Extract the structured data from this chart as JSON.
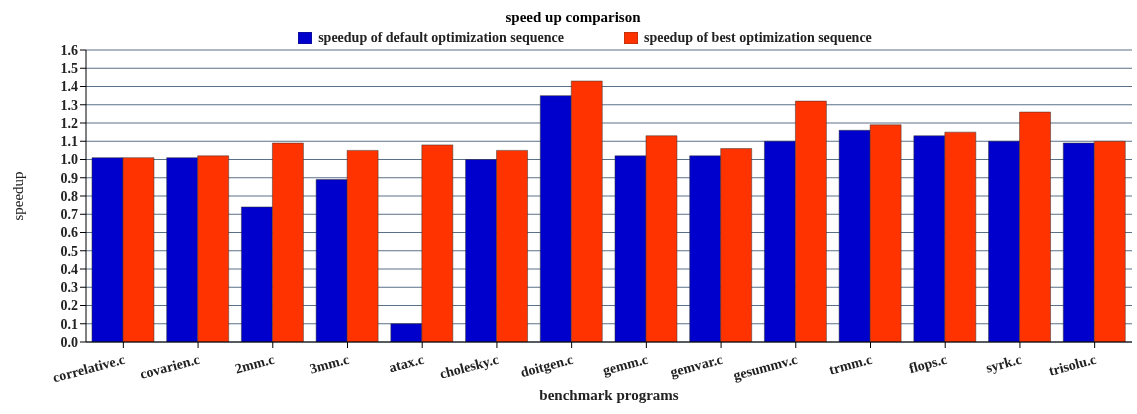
{
  "chart_data": {
    "type": "bar",
    "title": "speed up comparison",
    "xlabel": "benchmark programs",
    "ylabel": "speedup",
    "categories": [
      "correlative.c",
      "covarien.c",
      "2mm.c",
      "3mm.c",
      "atax.c",
      "cholesky.c",
      "doitgen.c",
      "gemm.c",
      "gemvar.c",
      "gesummv.c",
      "trmm.c",
      "flops.c",
      "syrk.c",
      "trisolu.c"
    ],
    "series": [
      {
        "name": "speedup of default optimization sequence",
        "color": "#0000cc",
        "values": [
          1.01,
          1.01,
          0.74,
          0.89,
          0.1,
          1.0,
          1.35,
          1.02,
          1.02,
          1.1,
          1.16,
          1.13,
          1.1,
          1.09
        ]
      },
      {
        "name": "speedup of best optimization sequence",
        "color": "#ff3300",
        "values": [
          1.01,
          1.02,
          1.09,
          1.05,
          1.08,
          1.05,
          1.43,
          1.13,
          1.06,
          1.32,
          1.19,
          1.15,
          1.26,
          1.1
        ]
      }
    ],
    "ylim": [
      0,
      1.6
    ],
    "yticks": [
      {
        "value": 0,
        "label": "0.0"
      },
      0.1,
      0.2,
      0.3,
      0.4,
      0.5,
      0.6,
      0.7,
      0.8,
      0.9,
      {
        "value": 1,
        "label": "1.0"
      },
      1.1,
      1.2,
      1.3,
      1.4,
      1.5,
      1.6
    ],
    "grid": "y",
    "legend": "top"
  }
}
